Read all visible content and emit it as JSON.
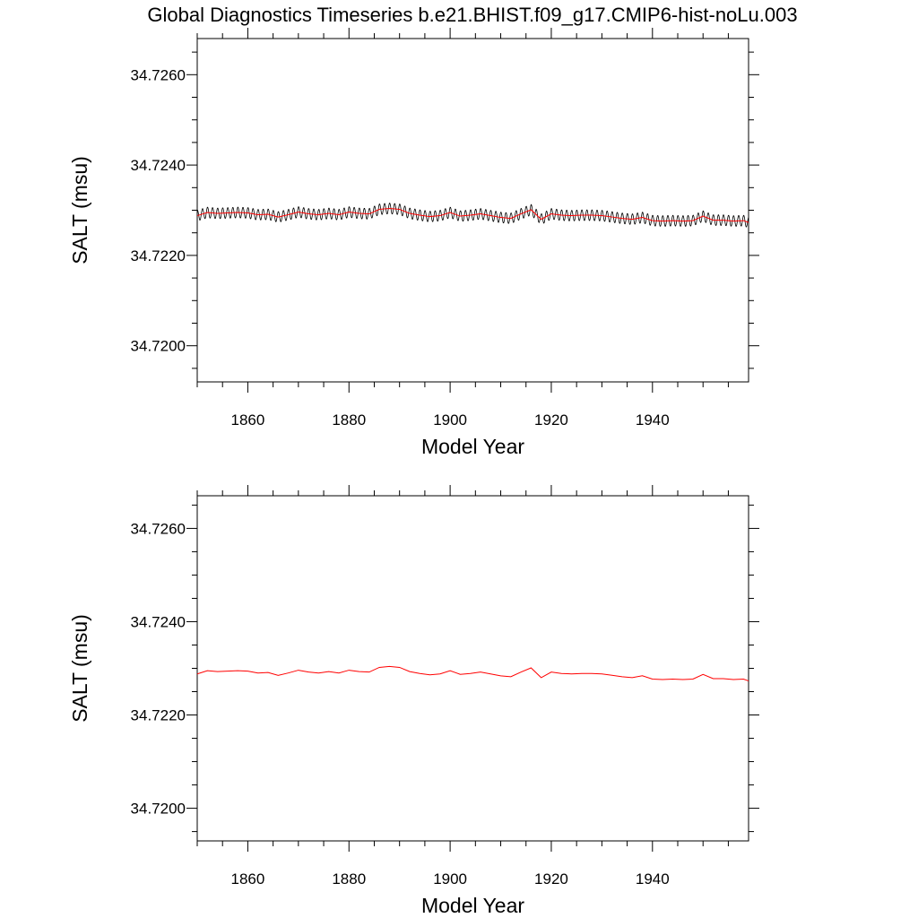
{
  "figure_title": "Global Diagnostics Timeseries b.e21.BHIST.f09_g17.CMIP6-hist-noLu.003",
  "colors": {
    "monthly": "#000000",
    "annual": "#ff0000",
    "axis": "#000000"
  },
  "chart_data": [
    {
      "type": "line",
      "title": "Global Diagnostics Timeseries b.e21.BHIST.f09_g17.CMIP6-hist-noLu.003",
      "xlabel": "Model Year",
      "ylabel": "SALT (msu)",
      "xlim": [
        1850,
        1959
      ],
      "ylim": [
        34.7192,
        34.7268
      ],
      "xticks": [
        1860,
        1880,
        1900,
        1920,
        1940
      ],
      "xtick_labels": [
        "1860",
        "1880",
        "1900",
        "1920",
        "1940"
      ],
      "yticks": [
        34.72,
        34.722,
        34.724,
        34.726
      ],
      "ytick_labels": [
        "34.7200",
        "34.7220",
        "34.7240",
        "34.7260"
      ],
      "grid": false,
      "series": [
        {
          "role": "monthly",
          "color": "#000000",
          "seasonal_amplitude": 0.00012,
          "x_start": 1850,
          "x_end": 1959,
          "cycles_per_year": 1
        },
        {
          "role": "annual",
          "color": "#ff0000",
          "x": [
            1850,
            1852,
            1854,
            1856,
            1858,
            1860,
            1862,
            1864,
            1866,
            1868,
            1870,
            1872,
            1874,
            1876,
            1878,
            1880,
            1882,
            1884,
            1886,
            1888,
            1890,
            1892,
            1894,
            1896,
            1898,
            1900,
            1902,
            1904,
            1906,
            1908,
            1910,
            1912,
            1914,
            1916,
            1918,
            1920,
            1922,
            1924,
            1926,
            1928,
            1930,
            1932,
            1934,
            1936,
            1938,
            1940,
            1942,
            1944,
            1946,
            1948,
            1950,
            1952,
            1954,
            1956,
            1958,
            1959
          ],
          "values": [
            34.72288,
            34.72295,
            34.72293,
            34.72294,
            34.72295,
            34.72294,
            34.7229,
            34.72291,
            34.72285,
            34.7229,
            34.72296,
            34.72292,
            34.7229,
            34.72293,
            34.7229,
            34.72296,
            34.72293,
            34.72292,
            34.72302,
            34.72304,
            34.72302,
            34.72293,
            34.72289,
            34.72286,
            34.72288,
            34.72295,
            34.72287,
            34.72289,
            34.72292,
            34.72288,
            34.72284,
            34.72282,
            34.72292,
            34.72301,
            34.7228,
            34.72292,
            34.72289,
            34.72288,
            34.72289,
            34.72289,
            34.72288,
            34.72285,
            34.72282,
            34.7228,
            34.72284,
            34.72277,
            34.72276,
            34.72277,
            34.72276,
            34.72277,
            34.72287,
            34.72278,
            34.72278,
            34.72276,
            34.72277,
            34.72273
          ]
        }
      ]
    },
    {
      "type": "line",
      "title": "",
      "xlabel": "Model Year",
      "ylabel": "SALT (msu)",
      "xlim": [
        1850,
        1959
      ],
      "ylim": [
        34.7193,
        34.7267
      ],
      "xticks": [
        1860,
        1880,
        1900,
        1920,
        1940
      ],
      "xtick_labels": [
        "1860",
        "1880",
        "1900",
        "1920",
        "1940"
      ],
      "yticks": [
        34.72,
        34.722,
        34.724,
        34.726
      ],
      "ytick_labels": [
        "34.7200",
        "34.7220",
        "34.7240",
        "34.7260"
      ],
      "grid": false,
      "series": [
        {
          "role": "annual",
          "color": "#ff0000",
          "x": [
            1850,
            1852,
            1854,
            1856,
            1858,
            1860,
            1862,
            1864,
            1866,
            1868,
            1870,
            1872,
            1874,
            1876,
            1878,
            1880,
            1882,
            1884,
            1886,
            1888,
            1890,
            1892,
            1894,
            1896,
            1898,
            1900,
            1902,
            1904,
            1906,
            1908,
            1910,
            1912,
            1914,
            1916,
            1918,
            1920,
            1922,
            1924,
            1926,
            1928,
            1930,
            1932,
            1934,
            1936,
            1938,
            1940,
            1942,
            1944,
            1946,
            1948,
            1950,
            1952,
            1954,
            1956,
            1958,
            1959
          ],
          "values": [
            34.72288,
            34.72295,
            34.72293,
            34.72294,
            34.72295,
            34.72294,
            34.7229,
            34.72291,
            34.72285,
            34.7229,
            34.72296,
            34.72292,
            34.7229,
            34.72293,
            34.7229,
            34.72296,
            34.72293,
            34.72292,
            34.72302,
            34.72304,
            34.72302,
            34.72293,
            34.72289,
            34.72286,
            34.72288,
            34.72295,
            34.72287,
            34.72289,
            34.72292,
            34.72288,
            34.72284,
            34.72282,
            34.72292,
            34.72301,
            34.7228,
            34.72292,
            34.72289,
            34.72288,
            34.72289,
            34.72289,
            34.72288,
            34.72285,
            34.72282,
            34.7228,
            34.72284,
            34.72277,
            34.72276,
            34.72277,
            34.72276,
            34.72277,
            34.72287,
            34.72278,
            34.72278,
            34.72276,
            34.72277,
            34.72273
          ]
        }
      ]
    }
  ]
}
